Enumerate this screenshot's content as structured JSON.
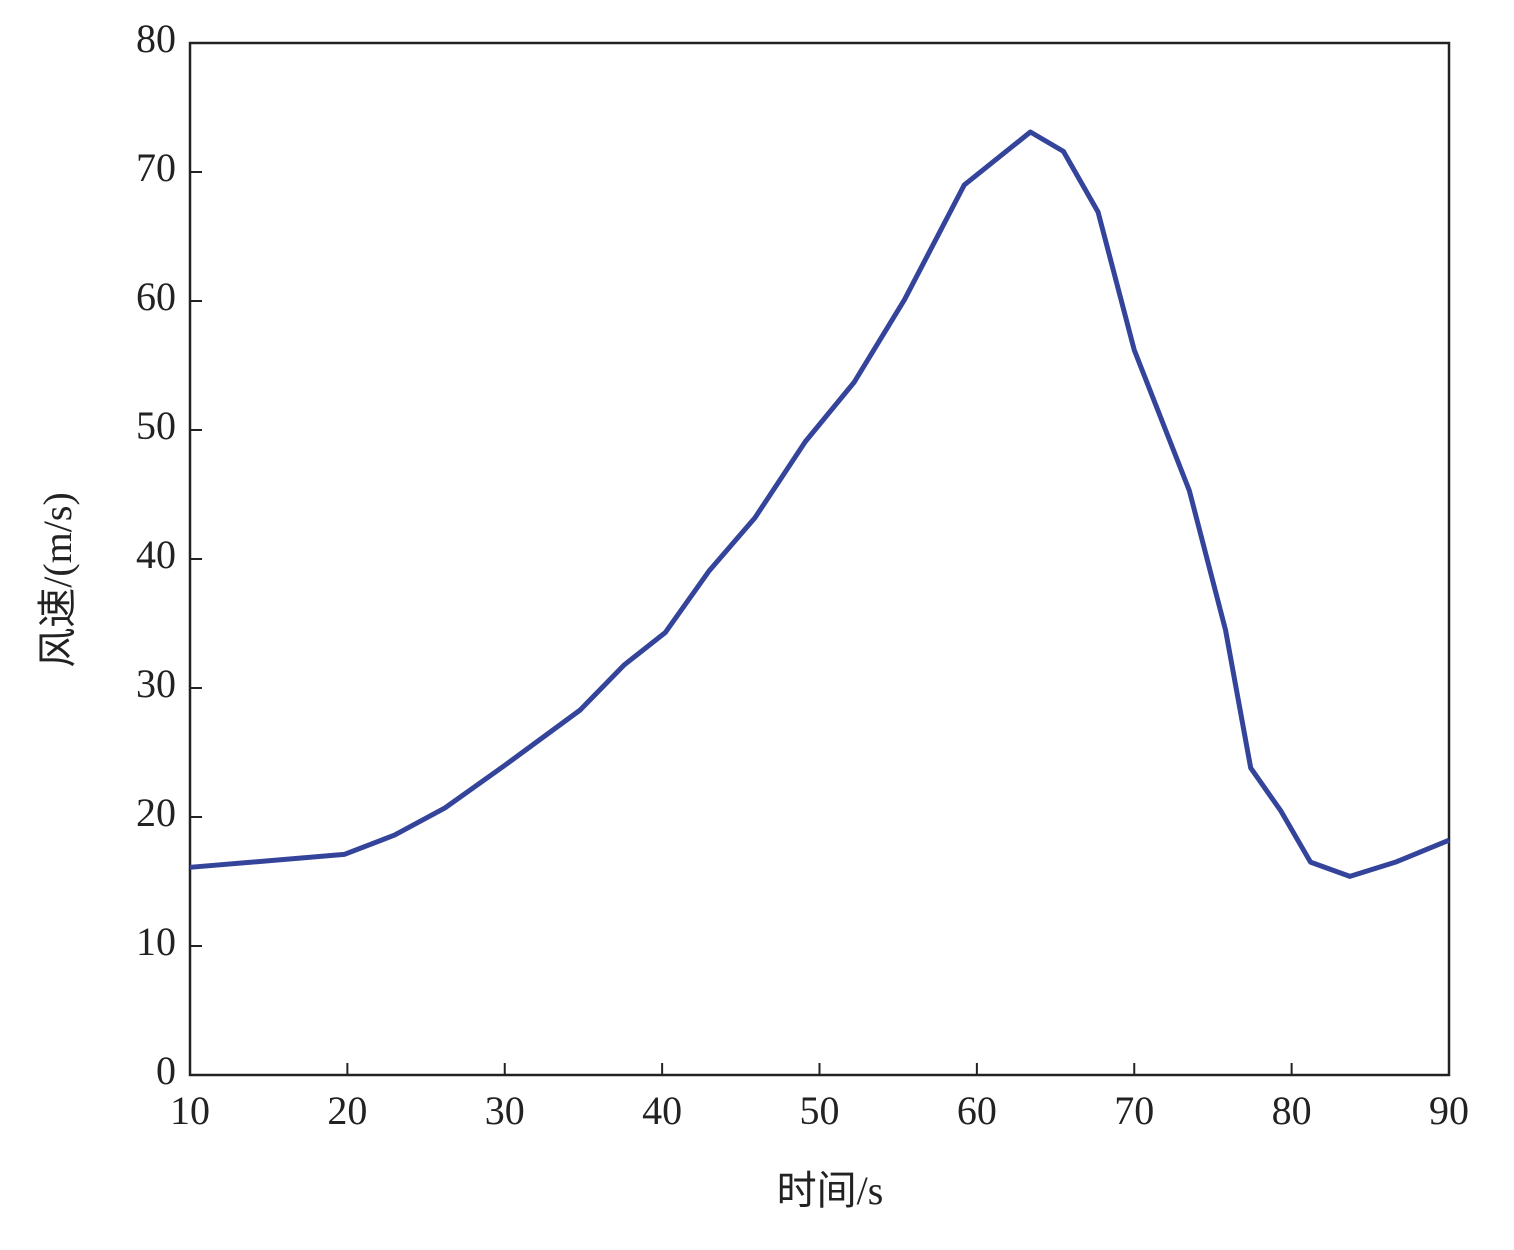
{
  "chart_data": {
    "type": "line",
    "xlabel": "时间/s",
    "ylabel": "风速/(m/s)",
    "x": [
      10,
      19.8,
      23,
      26.2,
      30,
      34.8,
      37.6,
      40.2,
      43,
      45.9,
      49.1,
      52.2,
      55.4,
      59.2,
      63.4,
      65.5,
      67.7,
      70,
      73.5,
      75.8,
      77.4,
      79.3,
      81.2,
      83.7,
      86.6,
      90
    ],
    "series": [
      {
        "color": "#34449a",
        "values": [
          16.1,
          17.1,
          18.6,
          20.7,
          24.0,
          28.3,
          31.8,
          34.3,
          39.1,
          43.2,
          49.1,
          53.7,
          60.1,
          69.0,
          73.1,
          71.6,
          66.9,
          56.2,
          45.3,
          34.5,
          23.8,
          20.5,
          16.5,
          15.4,
          16.5,
          18.2
        ]
      }
    ],
    "xlim": [
      10,
      90
    ],
    "xticks": [
      10,
      20,
      30,
      40,
      50,
      60,
      70,
      80,
      90
    ],
    "ylim": [
      0,
      80
    ],
    "yticks": [
      0,
      10,
      20,
      30,
      40,
      50,
      60,
      70,
      80
    ]
  }
}
